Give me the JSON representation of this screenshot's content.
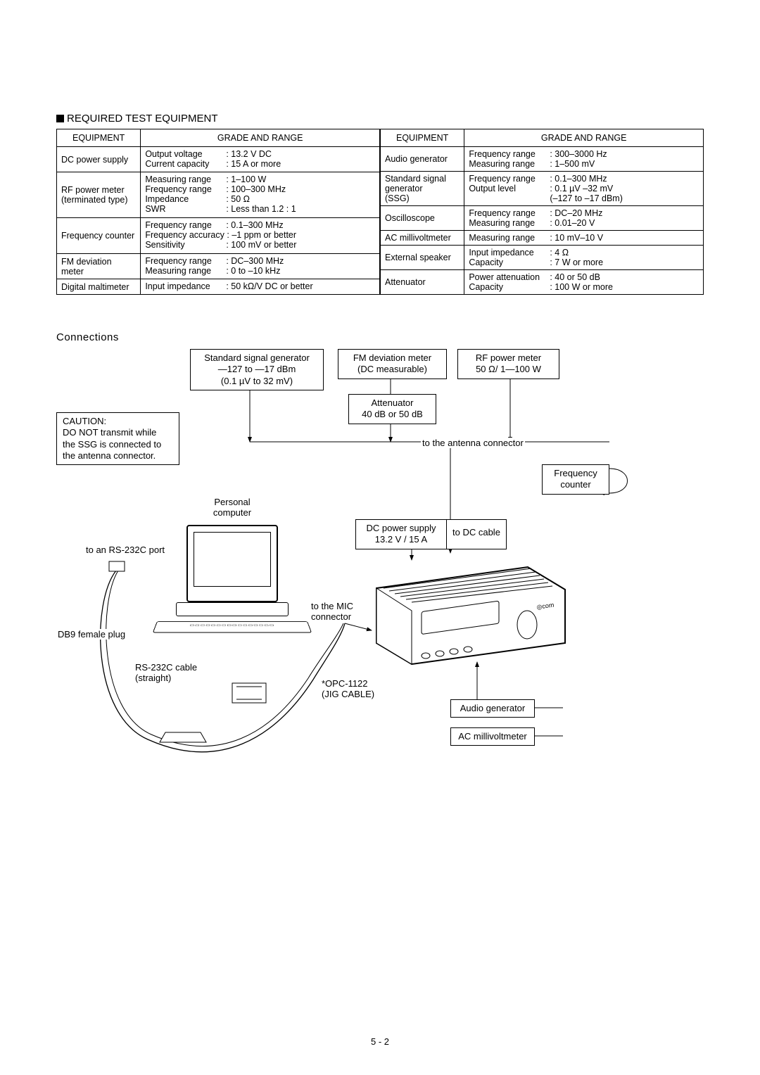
{
  "section_title": "REQUIRED TEST EQUIPMENT",
  "headers": {
    "equipment": "EQUIPMENT",
    "grade": "GRADE AND RANGE"
  },
  "left_table": [
    {
      "equipment": "DC power supply",
      "specs": [
        {
          "label": "Output voltage",
          "value": "13.2 V DC"
        },
        {
          "label": "Current capacity",
          "value": "15 A or more"
        }
      ]
    },
    {
      "equipment": "RF power meter (terminated type)",
      "specs": [
        {
          "label": "Measuring range",
          "value": "1–100 W"
        },
        {
          "label": "Frequency range",
          "value": "100–300 MHz"
        },
        {
          "label": "Impedance",
          "value": "50 Ω"
        },
        {
          "label": "SWR",
          "value": "Less than 1.2 : 1"
        }
      ]
    },
    {
      "equipment": "Frequency counter",
      "specs": [
        {
          "label": "Frequency range",
          "value": "0.1–300 MHz"
        },
        {
          "label": "Frequency accuracy",
          "value": "–1 ppm or better",
          "onecol": true
        },
        {
          "label": "Sensitivity",
          "value": "100 mV or better"
        }
      ]
    },
    {
      "equipment": "FM deviation meter",
      "specs": [
        {
          "label": "Frequency range",
          "value": "DC–300 MHz"
        },
        {
          "label": "Measuring range",
          "value": "0 to –10 kHz"
        }
      ]
    },
    {
      "equipment": "Digital maltimeter",
      "specs": [
        {
          "label": "Input impedance",
          "value": "50 kΩ/V DC or better"
        }
      ]
    }
  ],
  "right_table": [
    {
      "equipment": "Audio generator",
      "specs": [
        {
          "label": "Frequency range",
          "value": "300–3000 Hz"
        },
        {
          "label": "Measuring range",
          "value": "1–500 mV"
        }
      ]
    },
    {
      "equipment": "Standard signal generator (SSG)",
      "specs": [
        {
          "label": "Frequency range",
          "value": "0.1–300 MHz"
        },
        {
          "label": "Output level",
          "value": "0.1 µV –32 mV"
        },
        {
          "label": "",
          "value": "(–127 to –17 dBm)",
          "nolabel": true
        }
      ]
    },
    {
      "equipment": "Oscilloscope",
      "specs": [
        {
          "label": "Frequency range",
          "value": "DC–20 MHz"
        },
        {
          "label": "Measuring range",
          "value": "0.01–20 V"
        }
      ]
    },
    {
      "equipment": "AC millivoltmeter",
      "specs": [
        {
          "label": "Measuring range",
          "value": "10 mV–10 V"
        }
      ]
    },
    {
      "equipment": "External speaker",
      "specs": [
        {
          "label": "Input impedance",
          "value": "4 Ω"
        },
        {
          "label": "Capacity",
          "value": "7 W or more"
        }
      ]
    },
    {
      "equipment": "Attenuator",
      "specs": [
        {
          "label": "Power attenuation",
          "value": "40 or 50 dB"
        },
        {
          "label": "Capacity",
          "value": "100 W or more"
        }
      ]
    }
  ],
  "connections_title": "Connections",
  "diagram": {
    "ssg_box": "Standard signal generator\n—127 to —17 dBm\n(0.1 µV to 32 mV)",
    "fm_box": "FM deviation meter\n(DC measurable)",
    "rf_box": "RF power meter\n50 Ω/ 1—100 W",
    "atten_box": "Attenuator\n40 dB or 50 dB",
    "caution": "CAUTION:\nDO NOT transmit while\nthe SSG is connected to\nthe antenna connector.",
    "pc_label": "Personal\ncomputer",
    "rs232_port": "to an RS-232C port",
    "db9": "DB9 female plug",
    "rs232_cable": "RS-232C cable\n(straight)",
    "opc": "*OPC-1122\n(JIG CABLE)",
    "dcps_box": "DC power supply\n13.2 V / 15 A",
    "dc_cable": "to DC cable",
    "to_antenna": "to the antenna connector",
    "freq_counter": "Frequency\ncounter",
    "to_mic": "to the MIC\nconnector",
    "audio_gen": "Audio generator",
    "ac_mv": "AC millivoltmeter"
  },
  "page_number": "5 - 2"
}
